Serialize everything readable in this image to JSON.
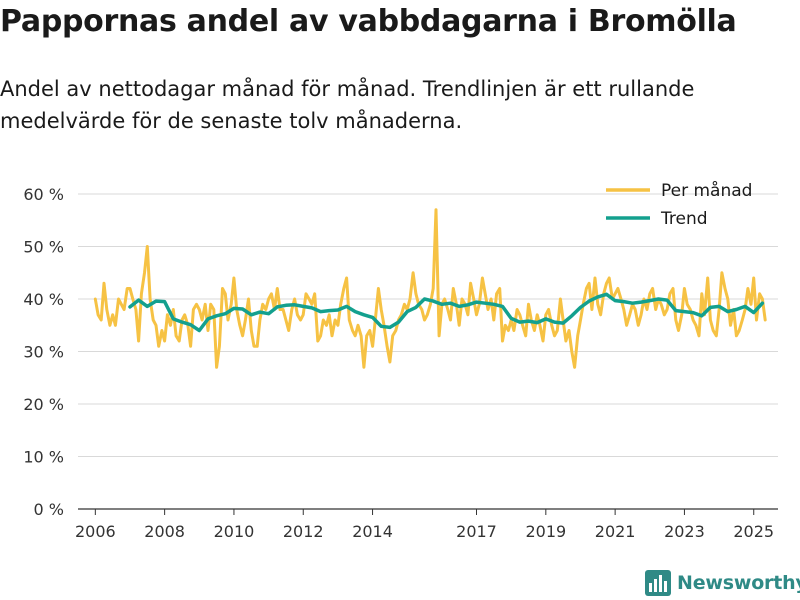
{
  "title": "Pappornas andel av vabbdagarna i Bromölla",
  "subtitle": "Andel av nettodagar månad för månad. Trendlinjen är ett rullande medelvärde för de senaste tolv månaderna.",
  "brand": {
    "name": "Newsworthy",
    "color": "#2f8a86"
  },
  "chart_data": {
    "type": "line",
    "title": "Pappornas andel av vabbdagarna i Bromölla",
    "xlabel": "",
    "ylabel": "",
    "xlim": [
      2005.5,
      2025.7
    ],
    "ylim": [
      0,
      60
    ],
    "y_ticks": [
      0,
      10,
      20,
      30,
      40,
      50,
      60
    ],
    "y_tick_labels": [
      "0 %",
      "10 %",
      "20 %",
      "30 %",
      "40 %",
      "50 %",
      "60 %"
    ],
    "x_ticks": [
      2006,
      2008,
      2010,
      2012,
      2014,
      2017,
      2019,
      2021,
      2023,
      2025
    ],
    "x_tick_labels": [
      "2006",
      "2008",
      "2010",
      "2012",
      "2014",
      "2017",
      "2019",
      "2021",
      "2023",
      "2025"
    ],
    "grid": true,
    "legend_position": "top-right",
    "series": [
      {
        "name": "Per månad",
        "color": "#f6c244",
        "x": [
          2006.0,
          2006.08,
          2006.17,
          2006.25,
          2006.33,
          2006.42,
          2006.5,
          2006.58,
          2006.67,
          2006.75,
          2006.83,
          2006.92,
          2007.0,
          2007.08,
          2007.17,
          2007.25,
          2007.33,
          2007.42,
          2007.5,
          2007.58,
          2007.67,
          2007.75,
          2007.83,
          2007.92,
          2008.0,
          2008.08,
          2008.17,
          2008.25,
          2008.33,
          2008.42,
          2008.5,
          2008.58,
          2008.67,
          2008.75,
          2008.83,
          2008.92,
          2009.0,
          2009.08,
          2009.17,
          2009.25,
          2009.33,
          2009.42,
          2009.5,
          2009.58,
          2009.67,
          2009.75,
          2009.83,
          2009.92,
          2010.0,
          2010.08,
          2010.17,
          2010.25,
          2010.33,
          2010.42,
          2010.5,
          2010.58,
          2010.67,
          2010.75,
          2010.83,
          2010.92,
          2011.0,
          2011.08,
          2011.17,
          2011.25,
          2011.33,
          2011.42,
          2011.5,
          2011.58,
          2011.67,
          2011.75,
          2011.83,
          2011.92,
          2012.0,
          2012.08,
          2012.17,
          2012.25,
          2012.33,
          2012.42,
          2012.5,
          2012.58,
          2012.67,
          2012.75,
          2012.83,
          2012.92,
          2013.0,
          2013.08,
          2013.17,
          2013.25,
          2013.33,
          2013.42,
          2013.5,
          2013.58,
          2013.67,
          2013.75,
          2013.83,
          2013.92,
          2014.0,
          2014.08,
          2014.17,
          2014.25,
          2014.33,
          2014.42,
          2014.5,
          2014.58,
          2014.67,
          2014.75,
          2014.83,
          2014.92,
          2015.0,
          2015.08,
          2015.17,
          2015.25,
          2015.33,
          2015.42,
          2015.5,
          2015.58,
          2015.67,
          2015.75,
          2015.83,
          2015.92,
          2016.0,
          2016.08,
          2016.17,
          2016.25,
          2016.33,
          2016.42,
          2016.5,
          2016.58,
          2016.67,
          2016.75,
          2016.83,
          2016.92,
          2017.0,
          2017.08,
          2017.17,
          2017.25,
          2017.33,
          2017.42,
          2017.5,
          2017.58,
          2017.67,
          2017.75,
          2017.83,
          2017.92,
          2018.0,
          2018.08,
          2018.17,
          2018.25,
          2018.33,
          2018.42,
          2018.5,
          2018.58,
          2018.67,
          2018.75,
          2018.83,
          2018.92,
          2019.0,
          2019.08,
          2019.17,
          2019.25,
          2019.33,
          2019.42,
          2019.5,
          2019.58,
          2019.67,
          2019.75,
          2019.83,
          2019.92,
          2020.0,
          2020.08,
          2020.17,
          2020.25,
          2020.33,
          2020.42,
          2020.5,
          2020.58,
          2020.67,
          2020.75,
          2020.83,
          2020.92,
          2021.0,
          2021.08,
          2021.17,
          2021.25,
          2021.33,
          2021.42,
          2021.5,
          2021.58,
          2021.67,
          2021.75,
          2021.83,
          2021.92,
          2022.0,
          2022.08,
          2022.17,
          2022.25,
          2022.33,
          2022.42,
          2022.5,
          2022.58,
          2022.67,
          2022.75,
          2022.83,
          2022.92,
          2023.0,
          2023.08,
          2023.17,
          2023.25,
          2023.33,
          2023.42,
          2023.5,
          2023.58,
          2023.67,
          2023.75,
          2023.83,
          2023.92,
          2024.0,
          2024.08,
          2024.17,
          2024.25,
          2024.33,
          2024.42,
          2024.5,
          2024.58,
          2024.67,
          2024.75,
          2024.83,
          2024.92,
          2025.0,
          2025.08,
          2025.17,
          2025.25,
          2025.33
        ],
        "values": [
          40,
          37,
          36,
          43,
          38,
          35,
          37,
          35,
          40,
          39,
          38,
          42,
          42,
          40,
          38,
          32,
          41,
          45,
          50,
          40,
          36,
          35,
          31,
          34,
          32,
          37,
          35,
          38,
          33,
          32,
          36,
          37,
          35,
          31,
          38,
          39,
          38,
          36,
          39,
          34,
          39,
          38,
          27,
          31,
          42,
          41,
          36,
          39,
          44,
          38,
          35,
          33,
          36,
          40,
          34,
          31,
          31,
          36,
          39,
          38,
          40,
          41,
          38,
          42,
          38,
          38,
          36,
          34,
          38,
          40,
          37,
          36,
          37,
          41,
          40,
          39,
          41,
          32,
          33,
          36,
          35,
          37,
          33,
          36,
          35,
          39,
          42,
          44,
          36,
          34,
          33,
          35,
          33,
          27,
          33,
          34,
          31,
          36,
          42,
          38,
          35,
          31,
          28,
          33,
          34,
          36,
          37,
          39,
          38,
          40,
          45,
          41,
          39,
          38,
          36,
          37,
          39,
          42,
          57,
          33,
          39,
          40,
          38,
          36,
          42,
          39,
          35,
          40,
          39,
          37,
          43,
          40,
          37,
          39,
          44,
          41,
          38,
          40,
          36,
          41,
          42,
          32,
          35,
          34,
          36,
          34,
          38,
          37,
          35,
          33,
          39,
          36,
          34,
          37,
          35,
          32,
          37,
          38,
          35,
          33,
          34,
          40,
          36,
          32,
          34,
          30,
          27,
          33,
          36,
          39,
          42,
          43,
          38,
          44,
          39,
          37,
          41,
          43,
          44,
          40,
          41,
          42,
          40,
          38,
          35,
          37,
          39,
          38,
          35,
          37,
          40,
          38,
          41,
          42,
          38,
          40,
          39,
          37,
          38,
          41,
          42,
          36,
          34,
          37,
          42,
          39,
          38,
          36,
          35,
          33,
          41,
          37,
          44,
          36,
          34,
          33,
          38,
          45,
          42,
          40,
          35,
          38,
          33,
          34,
          36,
          38,
          42,
          39,
          44,
          36,
          41,
          40,
          36
        ]
      },
      {
        "name": "Trend",
        "color": "#13a08e",
        "x": [
          2007.0,
          2007.25,
          2007.5,
          2007.75,
          2008.0,
          2008.25,
          2008.5,
          2008.75,
          2009.0,
          2009.25,
          2009.5,
          2009.75,
          2010.0,
          2010.25,
          2010.5,
          2010.75,
          2011.0,
          2011.25,
          2011.5,
          2011.75,
          2012.0,
          2012.25,
          2012.5,
          2012.75,
          2013.0,
          2013.25,
          2013.5,
          2013.75,
          2014.0,
          2014.25,
          2014.5,
          2014.75,
          2015.0,
          2015.25,
          2015.5,
          2015.75,
          2016.0,
          2016.25,
          2016.5,
          2016.75,
          2017.0,
          2017.25,
          2017.5,
          2017.75,
          2018.0,
          2018.25,
          2018.5,
          2018.75,
          2019.0,
          2019.25,
          2019.5,
          2019.75,
          2020.0,
          2020.25,
          2020.5,
          2020.75,
          2021.0,
          2021.25,
          2021.5,
          2021.75,
          2022.0,
          2022.25,
          2022.5,
          2022.75,
          2023.0,
          2023.25,
          2023.5,
          2023.75,
          2024.0,
          2024.25,
          2024.5,
          2024.75,
          2025.0,
          2025.25
        ],
        "values": [
          38.5,
          39.8,
          38.6,
          39.6,
          39.5,
          36.2,
          35.6,
          35.1,
          34.0,
          36.2,
          36.8,
          37.2,
          38.2,
          38.1,
          37.0,
          37.5,
          37.2,
          38.5,
          38.8,
          38.9,
          38.6,
          38.3,
          37.6,
          37.8,
          37.9,
          38.6,
          37.6,
          37.0,
          36.5,
          34.8,
          34.6,
          35.6,
          37.6,
          38.4,
          40.0,
          39.6,
          39.0,
          39.2,
          38.6,
          38.9,
          39.4,
          39.2,
          39.0,
          38.6,
          36.3,
          35.6,
          35.8,
          35.5,
          36.2,
          35.6,
          35.4,
          36.8,
          38.4,
          39.6,
          40.4,
          40.9,
          39.7,
          39.5,
          39.2,
          39.4,
          39.7,
          40.0,
          39.8,
          37.8,
          37.6,
          37.4,
          36.8,
          38.4,
          38.6,
          37.6,
          38.0,
          38.6,
          37.4,
          39.2
        ]
      }
    ]
  }
}
